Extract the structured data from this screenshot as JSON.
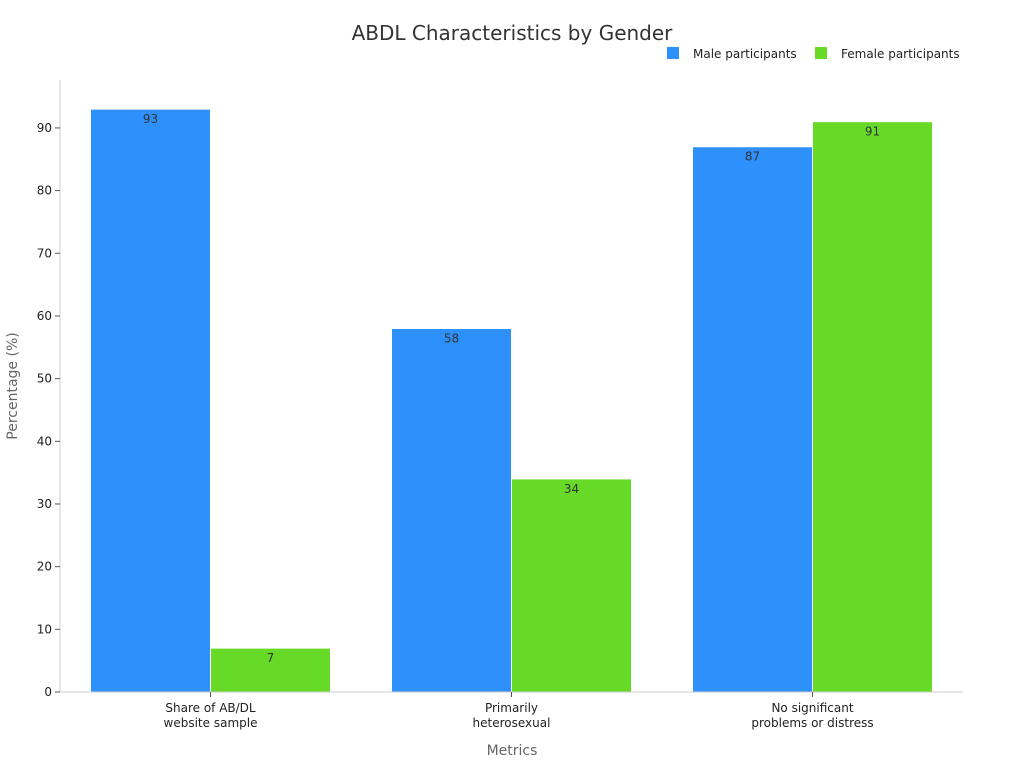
{
  "chart_data": {
    "type": "bar",
    "title": "ABDL Characteristics by Gender",
    "xlabel": "Metrics",
    "ylabel": "Percentage (%)",
    "categories": [
      [
        "Share of AB/DL",
        "website sample"
      ],
      [
        "Primarily",
        "heterosexual"
      ],
      [
        "No significant",
        "problems or distress"
      ]
    ],
    "series": [
      {
        "name": "Male participants",
        "color": "#2e90fa",
        "values": [
          93,
          58,
          87
        ]
      },
      {
        "name": "Female participants",
        "color": "#66da26",
        "values": [
          7,
          34,
          91
        ]
      }
    ],
    "ylim": [
      0,
      97.65
    ],
    "yticks": [
      0,
      10,
      20,
      30,
      40,
      50,
      60,
      70,
      80,
      90
    ],
    "grid": false,
    "legend": "top-right",
    "data_labels": true
  }
}
